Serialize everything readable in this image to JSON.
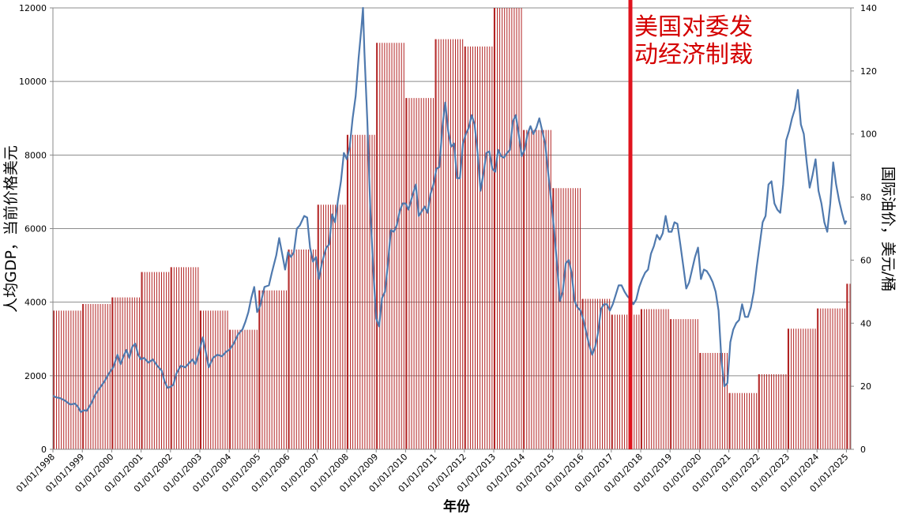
{
  "chart_data": {
    "type": "bar+line",
    "xlabel": "年份",
    "ylabel_left": "人均GDP，当前价格美元",
    "ylabel_right": "国际油价，美元/桶",
    "annotation": {
      "lines": [
        "美国对委发",
        "动经济制裁"
      ],
      "date": 2017.65
    },
    "colors": {
      "bars": "#b22222",
      "line": "#4f79ae",
      "grid": "#8c8c8c",
      "sanction": "#e0141e",
      "annotation": "#d40000"
    },
    "left_axis": {
      "min": 0,
      "max": 12000,
      "ticks": [
        "0",
        "2000",
        "4000",
        "6000",
        "8000",
        "10000",
        "12000"
      ]
    },
    "right_axis": {
      "min": 0,
      "max": 140,
      "ticks": [
        "0",
        "20",
        "40",
        "60",
        "80",
        "100",
        "120",
        "140"
      ]
    },
    "x_ticks": [
      "01/01/1998",
      "01/01/1999",
      "01/01/2000",
      "01/01/2001",
      "01/01/2002",
      "01/01/2003",
      "01/01/2004",
      "01/01/2005",
      "01/01/2006",
      "01/01/2007",
      "01/01/2008",
      "01/01/2009",
      "01/01/2010",
      "01/01/2011",
      "01/01/2012",
      "01/01/2013",
      "01/01/2014",
      "01/01/2015",
      "01/01/2016",
      "01/01/2017",
      "01/01/2018",
      "01/01/2019",
      "01/01/2020",
      "01/01/2021",
      "01/01/2022",
      "01/01/2023",
      "01/01/2024",
      "01/01/2025"
    ],
    "gdp_per_capita_series": {
      "name": "人均GDP，当前价格美元",
      "axis": "left",
      "years": [
        1998,
        1999,
        2000,
        2001,
        2002,
        2003,
        2004,
        2005,
        2006,
        2007,
        2008,
        2009,
        2010,
        2011,
        2012,
        2013,
        2014,
        2015,
        2016,
        2017,
        2018,
        2019,
        2020,
        2021,
        2022,
        2023,
        2024,
        2025
      ],
      "values": [
        3770,
        3950,
        4130,
        4820,
        4950,
        3770,
        3250,
        4320,
        5430,
        6650,
        8550,
        11050,
        9550,
        11150,
        10950,
        12000,
        8680,
        7100,
        4090,
        3660,
        3810,
        3540,
        2620,
        1530,
        2040,
        3280,
        3830,
        4500
      ]
    },
    "oil_price_series": {
      "name": "国际油价，美元/桶",
      "axis": "right",
      "points": [
        [
          1998.0,
          17
        ],
        [
          1998.1,
          16.5
        ],
        [
          1998.25,
          16.2
        ],
        [
          1998.4,
          15.5
        ],
        [
          1998.5,
          14.8
        ],
        [
          1998.6,
          14.2
        ],
        [
          1998.75,
          14.5
        ],
        [
          1998.85,
          13.5
        ],
        [
          1998.95,
          11.8
        ],
        [
          1999.05,
          12.4
        ],
        [
          1999.15,
          12.2
        ],
        [
          1999.3,
          14.5
        ],
        [
          1999.45,
          17.5
        ],
        [
          1999.6,
          19.5
        ],
        [
          1999.75,
          21.5
        ],
        [
          1999.9,
          24
        ],
        [
          2000.05,
          26
        ],
        [
          2000.2,
          30
        ],
        [
          2000.3,
          27
        ],
        [
          2000.4,
          29.5
        ],
        [
          2000.5,
          31.5
        ],
        [
          2000.6,
          29
        ],
        [
          2000.7,
          32.5
        ],
        [
          2000.8,
          33.5
        ],
        [
          2000.9,
          30
        ],
        [
          2001.0,
          28.5
        ],
        [
          2001.1,
          29
        ],
        [
          2001.25,
          27.5
        ],
        [
          2001.4,
          28.5
        ],
        [
          2001.55,
          26.5
        ],
        [
          2001.7,
          25
        ],
        [
          2001.8,
          21.5
        ],
        [
          2001.9,
          19.5
        ],
        [
          2002.0,
          19.8
        ],
        [
          2002.1,
          20.5
        ],
        [
          2002.2,
          24
        ],
        [
          2002.35,
          26.5
        ],
        [
          2002.5,
          26
        ],
        [
          2002.6,
          27
        ],
        [
          2002.75,
          28.5
        ],
        [
          2002.85,
          27
        ],
        [
          2002.95,
          30
        ],
        [
          2003.1,
          35.5
        ],
        [
          2003.2,
          31
        ],
        [
          2003.3,
          26
        ],
        [
          2003.45,
          29
        ],
        [
          2003.6,
          30
        ],
        [
          2003.75,
          29.5
        ],
        [
          2003.9,
          31
        ],
        [
          2004.0,
          31.5
        ],
        [
          2004.15,
          33.5
        ],
        [
          2004.3,
          36.5
        ],
        [
          2004.45,
          38
        ],
        [
          2004.55,
          40.5
        ],
        [
          2004.65,
          43.5
        ],
        [
          2004.75,
          48
        ],
        [
          2004.85,
          51.5
        ],
        [
          2004.95,
          43.5
        ],
        [
          2005.05,
          45.5
        ],
        [
          2005.2,
          51.5
        ],
        [
          2005.35,
          52
        ],
        [
          2005.45,
          56
        ],
        [
          2005.6,
          61.5
        ],
        [
          2005.7,
          67
        ],
        [
          2005.8,
          62
        ],
        [
          2005.9,
          57
        ],
        [
          2006.0,
          62.5
        ],
        [
          2006.1,
          61
        ],
        [
          2006.2,
          62.5
        ],
        [
          2006.3,
          70
        ],
        [
          2006.4,
          71
        ],
        [
          2006.55,
          74
        ],
        [
          2006.65,
          73.5
        ],
        [
          2006.75,
          64
        ],
        [
          2006.85,
          59.5
        ],
        [
          2006.95,
          61
        ],
        [
          2007.05,
          54
        ],
        [
          2007.15,
          59
        ],
        [
          2007.3,
          64
        ],
        [
          2007.4,
          65
        ],
        [
          2007.5,
          74.5
        ],
        [
          2007.6,
          72
        ],
        [
          2007.7,
          79
        ],
        [
          2007.8,
          85
        ],
        [
          2007.9,
          94
        ],
        [
          2008.0,
          92
        ],
        [
          2008.1,
          96
        ],
        [
          2008.2,
          105
        ],
        [
          2008.3,
          112
        ],
        [
          2008.4,
          124
        ],
        [
          2008.5,
          134
        ],
        [
          2008.55,
          140
        ],
        [
          2008.6,
          126
        ],
        [
          2008.7,
          104
        ],
        [
          2008.8,
          76
        ],
        [
          2008.9,
          57
        ],
        [
          2009.0,
          41.5
        ],
        [
          2009.1,
          39
        ],
        [
          2009.2,
          48
        ],
        [
          2009.3,
          50
        ],
        [
          2009.4,
          59
        ],
        [
          2009.5,
          69.5
        ],
        [
          2009.6,
          69
        ],
        [
          2009.7,
          71
        ],
        [
          2009.8,
          75.5
        ],
        [
          2009.9,
          78
        ],
        [
          2010.0,
          78
        ],
        [
          2010.1,
          76
        ],
        [
          2010.25,
          81
        ],
        [
          2010.35,
          84
        ],
        [
          2010.45,
          74
        ],
        [
          2010.55,
          75.5
        ],
        [
          2010.65,
          77
        ],
        [
          2010.75,
          75
        ],
        [
          2010.85,
          81
        ],
        [
          2010.95,
          84
        ],
        [
          2011.05,
          89
        ],
        [
          2011.15,
          89.5
        ],
        [
          2011.25,
          102
        ],
        [
          2011.35,
          110
        ],
        [
          2011.45,
          101
        ],
        [
          2011.55,
          96
        ],
        [
          2011.65,
          97
        ],
        [
          2011.75,
          86
        ],
        [
          2011.85,
          86
        ],
        [
          2011.95,
          97
        ],
        [
          2012.05,
          100
        ],
        [
          2012.15,
          102
        ],
        [
          2012.25,
          106
        ],
        [
          2012.35,
          103
        ],
        [
          2012.45,
          94
        ],
        [
          2012.55,
          82
        ],
        [
          2012.65,
          87.5
        ],
        [
          2012.75,
          94
        ],
        [
          2012.85,
          94.5
        ],
        [
          2012.95,
          89
        ],
        [
          2013.05,
          88
        ],
        [
          2013.15,
          95
        ],
        [
          2013.25,
          93
        ],
        [
          2013.35,
          92.5
        ],
        [
          2013.45,
          94
        ],
        [
          2013.55,
          95
        ],
        [
          2013.65,
          104
        ],
        [
          2013.75,
          106
        ],
        [
          2013.85,
          100
        ],
        [
          2013.95,
          93
        ],
        [
          2014.05,
          95
        ],
        [
          2014.15,
          100
        ],
        [
          2014.25,
          102.5
        ],
        [
          2014.35,
          100
        ],
        [
          2014.45,
          102
        ],
        [
          2014.55,
          105
        ],
        [
          2014.65,
          101
        ],
        [
          2014.75,
          97
        ],
        [
          2014.85,
          88
        ],
        [
          2014.95,
          79
        ],
        [
          2015.05,
          70
        ],
        [
          2015.15,
          59
        ],
        [
          2015.25,
          47
        ],
        [
          2015.35,
          50
        ],
        [
          2015.45,
          59
        ],
        [
          2015.55,
          60
        ],
        [
          2015.65,
          56
        ],
        [
          2015.75,
          47
        ],
        [
          2015.85,
          45
        ],
        [
          2015.95,
          44
        ],
        [
          2016.05,
          41
        ],
        [
          2016.15,
          37
        ],
        [
          2016.25,
          33
        ],
        [
          2016.35,
          30
        ],
        [
          2016.45,
          32.5
        ],
        [
          2016.55,
          37
        ],
        [
          2016.65,
          44.5
        ],
        [
          2016.75,
          46
        ],
        [
          2016.85,
          46
        ],
        [
          2016.95,
          44
        ],
        [
          2017.05,
          46
        ],
        [
          2017.15,
          49
        ],
        [
          2017.25,
          52
        ],
        [
          2017.35,
          52
        ],
        [
          2017.45,
          50
        ],
        [
          2017.55,
          48.5
        ],
        [
          2017.65,
          47.5
        ],
        [
          2017.75,
          46
        ],
        [
          2017.85,
          47.5
        ],
        [
          2017.95,
          51.5
        ],
        [
          2018.05,
          54
        ],
        [
          2018.15,
          56
        ],
        [
          2018.25,
          57
        ],
        [
          2018.35,
          62
        ],
        [
          2018.45,
          64.5
        ],
        [
          2018.55,
          68
        ],
        [
          2018.65,
          66.5
        ],
        [
          2018.75,
          68.5
        ],
        [
          2018.85,
          74
        ],
        [
          2018.95,
          69
        ],
        [
          2019.05,
          69
        ],
        [
          2019.15,
          72
        ],
        [
          2019.25,
          71.5
        ],
        [
          2019.35,
          65
        ],
        [
          2019.45,
          58
        ],
        [
          2019.55,
          51
        ],
        [
          2019.65,
          53
        ],
        [
          2019.75,
          57
        ],
        [
          2019.85,
          61
        ],
        [
          2019.95,
          64
        ],
        [
          2020.05,
          54
        ],
        [
          2020.15,
          57
        ],
        [
          2020.25,
          56.5
        ],
        [
          2020.35,
          55
        ],
        [
          2020.45,
          53
        ],
        [
          2020.55,
          50
        ],
        [
          2020.65,
          44
        ],
        [
          2020.75,
          28
        ],
        [
          2020.85,
          20
        ],
        [
          2020.95,
          21
        ],
        [
          2021.05,
          34
        ],
        [
          2021.15,
          38
        ],
        [
          2021.25,
          40
        ],
        [
          2021.35,
          41
        ],
        [
          2021.45,
          46
        ],
        [
          2021.55,
          42
        ],
        [
          2021.65,
          42
        ],
        [
          2021.75,
          45
        ],
        [
          2021.85,
          50
        ],
        [
          2021.95,
          58
        ],
        [
          2022.05,
          65
        ],
        [
          2022.15,
          72
        ],
        [
          2022.25,
          74
        ],
        [
          2022.35,
          84
        ],
        [
          2022.45,
          85
        ],
        [
          2022.55,
          78
        ],
        [
          2022.65,
          76
        ],
        [
          2022.75,
          75
        ],
        [
          2022.85,
          84
        ],
        [
          2022.95,
          98
        ],
        [
          2023.05,
          101
        ],
        [
          2023.15,
          105
        ],
        [
          2023.25,
          108
        ],
        [
          2023.35,
          114
        ],
        [
          2023.45,
          103
        ],
        [
          2023.55,
          100
        ],
        [
          2023.65,
          91
        ],
        [
          2023.75,
          83
        ],
        [
          2023.85,
          87
        ],
        [
          2023.95,
          92
        ],
        [
          2024.05,
          82
        ],
        [
          2024.15,
          78
        ],
        [
          2024.25,
          72
        ],
        [
          2024.35,
          69
        ],
        [
          2024.45,
          78
        ],
        [
          2024.55,
          91
        ],
        [
          2024.65,
          84
        ],
        [
          2024.75,
          79
        ],
        [
          2024.85,
          75
        ],
        [
          2024.95,
          71.5
        ],
        [
          2025.0,
          72.5
        ]
      ]
    }
  }
}
